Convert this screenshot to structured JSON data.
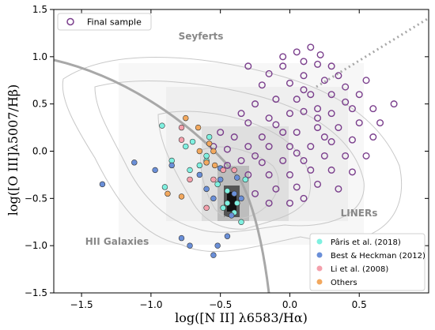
{
  "chart_data": {
    "type": "scatter",
    "xlabel": "log([N II] λ6583/Hα)",
    "ylabel": "log([O III]λ5007/Hβ)",
    "xlim": [
      -1.7,
      1.0
    ],
    "ylim": [
      -1.5,
      1.5
    ],
    "x_ticks": [
      -1.5,
      -1.0,
      -0.5,
      0.0,
      0.5
    ],
    "y_ticks": [
      -1.5,
      -1.0,
      -0.5,
      0.0,
      0.5,
      1.0,
      1.5
    ],
    "x_tick_labels": [
      "−1.5",
      "−1.0",
      "−0.5",
      "0.0",
      "0.5"
    ],
    "y_tick_labels": [
      "−1.5",
      "−1.0",
      "−0.5",
      "0.0",
      "0.5",
      "1.0",
      "1.5"
    ],
    "grid": false,
    "region_labels": [
      {
        "text": "Seyferts",
        "x": -0.45,
        "y": 1.2
      },
      {
        "text": "LINERs",
        "x": 0.65,
        "y": -0.67
      },
      {
        "text": "HII Galaxies",
        "x": -1.22,
        "y": -0.98
      }
    ],
    "legend_top": {
      "position": "top-left",
      "entries": [
        "Final sample"
      ]
    },
    "legend_bottom": {
      "position": "bottom-right",
      "entries": [
        {
          "name": "Pâris et al. (2018)",
          "color": "#7ff0e0"
        },
        {
          "name": "Best & Heckman (2012)",
          "color": "#6a8fd8"
        },
        {
          "name": "Li et al. (2008)",
          "color": "#f4a0ac"
        },
        {
          "name": "Others",
          "color": "#f2a85e"
        }
      ]
    },
    "colors": {
      "final_sample_edge": "#7a3e8c",
      "kauffmann_curve": "#a8a8a8",
      "dotted_line": "#a8a8a8",
      "contour": "#c8c8c8"
    },
    "series": [
      {
        "name": "Final sample",
        "marker": "open-circle",
        "points": [
          [
            -0.05,
            1.0
          ],
          [
            0.05,
            1.05
          ],
          [
            0.1,
            0.95
          ],
          [
            0.2,
            0.92
          ],
          [
            0.3,
            0.9
          ],
          [
            0.22,
            1.02
          ],
          [
            -0.15,
            0.82
          ],
          [
            -0.2,
            0.7
          ],
          [
            0.0,
            0.72
          ],
          [
            0.1,
            0.8
          ],
          [
            0.25,
            0.75
          ],
          [
            0.35,
            0.8
          ],
          [
            0.4,
            0.68
          ],
          [
            0.5,
            0.6
          ],
          [
            0.55,
            0.75
          ],
          [
            0.3,
            0.6
          ],
          [
            0.15,
            0.6
          ],
          [
            0.05,
            0.55
          ],
          [
            -0.1,
            0.55
          ],
          [
            -0.25,
            0.5
          ],
          [
            -0.35,
            0.4
          ],
          [
            -0.3,
            0.3
          ],
          [
            -0.15,
            0.35
          ],
          [
            0.0,
            0.4
          ],
          [
            0.1,
            0.42
          ],
          [
            0.2,
            0.45
          ],
          [
            0.3,
            0.4
          ],
          [
            0.45,
            0.45
          ],
          [
            0.6,
            0.45
          ],
          [
            0.75,
            0.5
          ],
          [
            0.65,
            0.3
          ],
          [
            0.5,
            0.3
          ],
          [
            0.35,
            0.25
          ],
          [
            0.2,
            0.25
          ],
          [
            0.05,
            0.2
          ],
          [
            -0.05,
            0.2
          ],
          [
            -0.2,
            0.15
          ],
          [
            -0.4,
            0.15
          ],
          [
            -0.5,
            0.2
          ],
          [
            -0.55,
            0.05
          ],
          [
            -0.45,
            0.02
          ],
          [
            -0.3,
            0.05
          ],
          [
            -0.15,
            0.05
          ],
          [
            0.0,
            0.05
          ],
          [
            0.15,
            0.05
          ],
          [
            0.3,
            0.1
          ],
          [
            0.45,
            0.12
          ],
          [
            0.6,
            0.15
          ],
          [
            0.55,
            -0.05
          ],
          [
            0.4,
            -0.05
          ],
          [
            0.25,
            -0.05
          ],
          [
            0.1,
            -0.1
          ],
          [
            -0.05,
            -0.1
          ],
          [
            -0.2,
            -0.12
          ],
          [
            -0.35,
            -0.1
          ],
          [
            -0.45,
            -0.15
          ],
          [
            -0.3,
            -0.25
          ],
          [
            -0.15,
            -0.25
          ],
          [
            0.0,
            -0.25
          ],
          [
            0.15,
            -0.2
          ],
          [
            0.3,
            -0.2
          ],
          [
            0.45,
            -0.22
          ],
          [
            0.2,
            -0.35
          ],
          [
            0.05,
            -0.38
          ],
          [
            -0.1,
            -0.4
          ],
          [
            -0.25,
            -0.45
          ],
          [
            -0.15,
            -0.55
          ],
          [
            0.0,
            -0.55
          ],
          [
            0.1,
            -0.5
          ],
          [
            0.35,
            -0.4
          ],
          [
            -0.05,
            0.9
          ],
          [
            0.15,
            1.1
          ],
          [
            -0.3,
            0.9
          ],
          [
            0.4,
            0.52
          ],
          [
            0.25,
            0.15
          ],
          [
            0.05,
            -0.02
          ],
          [
            -0.1,
            0.28
          ],
          [
            0.2,
            0.35
          ],
          [
            -0.25,
            -0.05
          ],
          [
            0.1,
            0.65
          ]
        ]
      },
      {
        "name": "Pâris et al. (2018)",
        "marker": "filled-circle",
        "points": [
          [
            -0.92,
            0.27
          ],
          [
            -0.7,
            0.1
          ],
          [
            -0.65,
            -0.15
          ],
          [
            -0.6,
            -0.1
          ],
          [
            -0.75,
            0.05
          ],
          [
            -0.85,
            -0.1
          ],
          [
            -0.58,
            0.15
          ],
          [
            -0.9,
            -0.38
          ],
          [
            -0.45,
            -0.55
          ],
          [
            -0.52,
            -0.35
          ],
          [
            -0.4,
            -0.65
          ],
          [
            -0.38,
            -0.55
          ],
          [
            -0.32,
            -0.3
          ],
          [
            -0.45,
            -0.42
          ],
          [
            -0.35,
            -0.75
          ],
          [
            -0.6,
            -0.05
          ],
          [
            -0.72,
            -0.2
          ],
          [
            -0.48,
            -0.6
          ]
        ]
      },
      {
        "name": "Best & Heckman (2012)",
        "marker": "filled-circle",
        "points": [
          [
            -1.35,
            -0.35
          ],
          [
            -1.12,
            -0.12
          ],
          [
            -0.97,
            -0.2
          ],
          [
            -0.85,
            -0.15
          ],
          [
            -0.78,
            -0.92
          ],
          [
            -0.72,
            -1.0
          ],
          [
            -0.55,
            -1.1
          ],
          [
            -0.52,
            -1.0
          ],
          [
            -0.45,
            -0.9
          ],
          [
            -0.5,
            -0.3
          ],
          [
            -0.4,
            -0.45
          ],
          [
            -0.55,
            -0.5
          ],
          [
            -0.6,
            -0.4
          ],
          [
            -0.42,
            -0.68
          ],
          [
            -0.35,
            -0.5
          ],
          [
            -0.65,
            -0.25
          ],
          [
            -0.5,
            -0.18
          ],
          [
            -0.38,
            -0.28
          ]
        ]
      },
      {
        "name": "Li et al. (2008)",
        "marker": "filled-circle",
        "points": [
          [
            -0.78,
            0.25
          ],
          [
            -0.78,
            0.12
          ],
          [
            -0.72,
            -0.3
          ],
          [
            -0.6,
            -0.6
          ],
          [
            -0.55,
            -0.3
          ],
          [
            -0.48,
            -0.2
          ],
          [
            -0.4,
            -0.2
          ]
        ]
      },
      {
        "name": "Others",
        "marker": "filled-circle",
        "points": [
          [
            -0.88,
            -0.45
          ],
          [
            -0.78,
            -0.48
          ],
          [
            -0.75,
            0.35
          ],
          [
            -0.66,
            0.25
          ],
          [
            -0.6,
            -0.12
          ],
          [
            -0.54,
            -0.15
          ],
          [
            -0.55,
            0.0
          ],
          [
            -0.65,
            0.0
          ],
          [
            -0.58,
            0.08
          ]
        ]
      }
    ]
  }
}
